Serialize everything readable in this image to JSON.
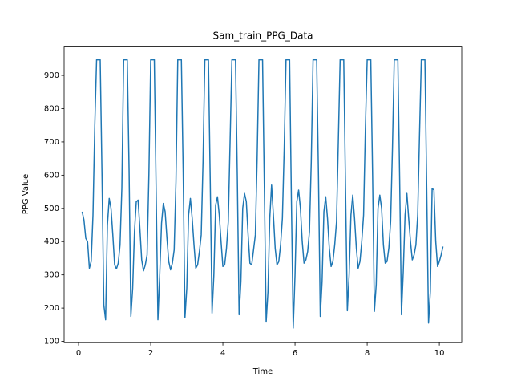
{
  "chart_data": {
    "type": "line",
    "title": "Sam_train_PPG_Data",
    "x_label": "Time",
    "y_label": "PPG Value",
    "xlim": [
      -0.4,
      10.62
    ],
    "ylim": [
      96,
      988
    ],
    "xticks": [
      0,
      2,
      4,
      6,
      8,
      10
    ],
    "yticks": [
      100,
      200,
      300,
      400,
      500,
      600,
      700,
      800,
      900
    ],
    "series": [
      {
        "color": "#1f77b4",
        "x": [
          0.1,
          0.15,
          0.2,
          0.25,
          0.3,
          0.35,
          0.4,
          0.45,
          0.5,
          0.55,
          0.6,
          0.65,
          0.7,
          0.75,
          0.8,
          0.85,
          0.9,
          0.95,
          1,
          1.05,
          1.1,
          1.15,
          1.2,
          1.25,
          1.3,
          1.35,
          1.4,
          1.45,
          1.5,
          1.55,
          1.6,
          1.65,
          1.7,
          1.75,
          1.8,
          1.85,
          1.9,
          1.95,
          2,
          2.05,
          2.1,
          2.15,
          2.2,
          2.25,
          2.3,
          2.35,
          2.4,
          2.45,
          2.5,
          2.55,
          2.6,
          2.65,
          2.7,
          2.75,
          2.8,
          2.85,
          2.9,
          2.95,
          3,
          3.05,
          3.1,
          3.15,
          3.2,
          3.25,
          3.3,
          3.35,
          3.4,
          3.45,
          3.5,
          3.55,
          3.6,
          3.65,
          3.7,
          3.75,
          3.8,
          3.85,
          3.9,
          3.95,
          4,
          4.05,
          4.1,
          4.15,
          4.2,
          4.25,
          4.3,
          4.35,
          4.4,
          4.45,
          4.5,
          4.55,
          4.6,
          4.65,
          4.7,
          4.75,
          4.8,
          4.85,
          4.9,
          4.95,
          5,
          5.05,
          5.1,
          5.15,
          5.2,
          5.25,
          5.3,
          5.35,
          5.4,
          5.45,
          5.5,
          5.55,
          5.6,
          5.65,
          5.7,
          5.75,
          5.8,
          5.85,
          5.9,
          5.95,
          6,
          6.05,
          6.1,
          6.15,
          6.2,
          6.25,
          6.3,
          6.35,
          6.4,
          6.45,
          6.5,
          6.55,
          6.6,
          6.65,
          6.7,
          6.75,
          6.8,
          6.85,
          6.9,
          6.95,
          7,
          7.05,
          7.1,
          7.15,
          7.2,
          7.25,
          7.3,
          7.35,
          7.4,
          7.45,
          7.5,
          7.55,
          7.6,
          7.65,
          7.7,
          7.75,
          7.8,
          7.85,
          7.9,
          7.95,
          8,
          8.05,
          8.1,
          8.15,
          8.2,
          8.25,
          8.3,
          8.35,
          8.4,
          8.45,
          8.5,
          8.55,
          8.6,
          8.65,
          8.7,
          8.75,
          8.8,
          8.85,
          8.9,
          8.95,
          9,
          9.05,
          9.1,
          9.15,
          9.2,
          9.25,
          9.3,
          9.35,
          9.4,
          9.45,
          9.5,
          9.55,
          9.6,
          9.65,
          9.7,
          9.75,
          9.8,
          9.85,
          9.9,
          9.95,
          10,
          10.05,
          10.1
        ],
        "values": [
          490,
          465,
          410,
          400,
          320,
          340,
          480,
          750,
          947,
          947,
          947,
          600,
          210,
          165,
          450,
          530,
          500,
          420,
          330,
          318,
          335,
          390,
          560,
          947,
          947,
          947,
          620,
          175,
          260,
          430,
          520,
          525,
          440,
          345,
          312,
          330,
          360,
          600,
          947,
          947,
          947,
          560,
          165,
          300,
          455,
          515,
          490,
          410,
          340,
          315,
          335,
          375,
          580,
          947,
          947,
          947,
          610,
          172,
          260,
          480,
          530,
          470,
          390,
          320,
          330,
          370,
          420,
          640,
          947,
          947,
          947,
          580,
          185,
          300,
          510,
          535,
          480,
          400,
          325,
          330,
          380,
          460,
          700,
          947,
          947,
          947,
          600,
          180,
          280,
          500,
          545,
          520,
          420,
          335,
          330,
          375,
          420,
          650,
          947,
          947,
          947,
          560,
          158,
          250,
          470,
          570,
          480,
          380,
          330,
          340,
          390,
          470,
          680,
          947,
          947,
          947,
          520,
          140,
          300,
          520,
          555,
          500,
          400,
          335,
          345,
          370,
          430,
          640,
          947,
          947,
          947,
          600,
          175,
          280,
          490,
          535,
          470,
          380,
          325,
          340,
          390,
          460,
          700,
          947,
          947,
          947,
          560,
          192,
          300,
          480,
          540,
          470,
          380,
          320,
          340,
          400,
          480,
          740,
          947,
          947,
          947,
          600,
          190,
          270,
          500,
          540,
          500,
          390,
          335,
          340,
          380,
          460,
          680,
          947,
          947,
          947,
          590,
          180,
          310,
          480,
          545,
          470,
          400,
          345,
          360,
          390,
          480,
          720,
          947,
          947,
          947,
          560,
          155,
          250,
          560,
          555,
          400,
          325,
          340,
          360,
          385
        ]
      }
    ]
  }
}
